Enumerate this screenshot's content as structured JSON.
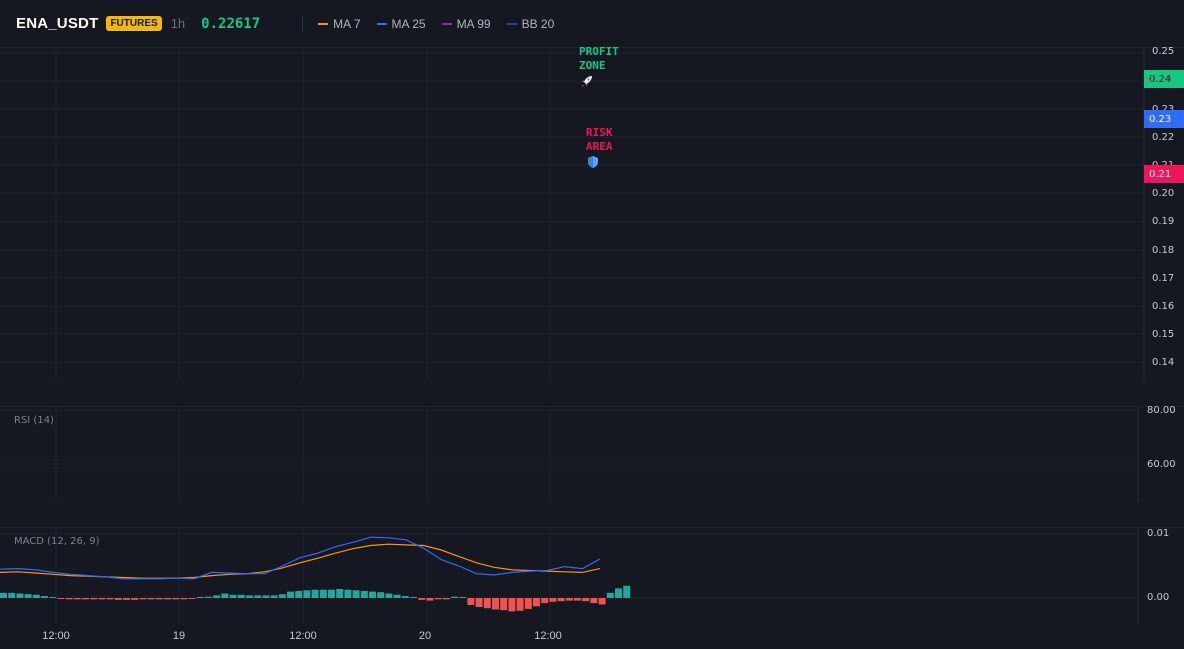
{
  "header": {
    "symbol": "ENA_USDT",
    "badge": "FUTURES",
    "interval": "1h",
    "price": "0.22617",
    "legend": [
      {
        "label": "MA 7",
        "color": "#f7931a"
      },
      {
        "label": "MA 25",
        "color": "#2f6bff"
      },
      {
        "label": "MA 99",
        "color": "#9c27b0"
      },
      {
        "label": "BB 20",
        "color": "#1e4a9c"
      }
    ]
  },
  "main_chart": {
    "price_axis": [
      "0.25",
      "0.24",
      "0.23",
      "0.23",
      "0.22",
      "0.21",
      "0.21",
      "0.20",
      "0.19",
      "0.18",
      "0.17",
      "0.16",
      "0.15",
      "0.14"
    ],
    "tags": [
      {
        "label": "0.24",
        "color": "#16c784"
      },
      {
        "label": "0.23",
        "color": "#2f6bff"
      },
      {
        "label": "0.21",
        "color": "#f0145a"
      }
    ],
    "annotations": {
      "profit": {
        "line1": "PROFIT",
        "line2": "ZONE",
        "color": "#16c784",
        "icon": "rocket-icon"
      },
      "risk": {
        "line1": "RISK",
        "line2": "AREA",
        "color": "#f0145a",
        "icon": "shield-icon"
      }
    }
  },
  "rsi": {
    "label": "RSI (14)",
    "axis": [
      "80.00",
      "60.00"
    ]
  },
  "macd": {
    "label": "MACD (12, 26, 9)",
    "axis": [
      "0.01",
      "0.00"
    ],
    "colors": {
      "macd": "#2f6bff",
      "signal": "#f7931a",
      "hist_pos": "#26a69a",
      "hist_neg": "#ef5350"
    },
    "histogram": [
      0.0008,
      0.0008,
      0.0007,
      0.0006,
      0.0005,
      0.0003,
      0.0001,
      -0.0001,
      -0.0002,
      -0.0002,
      -0.0002,
      -0.0002,
      -0.0002,
      -0.0002,
      -0.0003,
      -0.0003,
      -0.0003,
      -0.0002,
      -0.0002,
      -0.0002,
      -0.0002,
      -0.0002,
      -0.0002,
      -0.0001,
      0.0001,
      0.0002,
      0.0004,
      0.0007,
      0.0005,
      0.0005,
      0.0004,
      0.0004,
      0.0004,
      0.0004,
      0.0006,
      0.001,
      0.0011,
      0.0012,
      0.0013,
      0.0013,
      0.0013,
      0.0014,
      0.0013,
      0.0012,
      0.0011,
      0.001,
      0.0009,
      0.0007,
      0.0005,
      0.0003,
      0.0,
      -0.0003,
      -0.0004,
      -0.0002,
      -0.0002,
      0.0002,
      0.0,
      -0.0011,
      -0.0014,
      -0.0016,
      -0.0018,
      -0.0019,
      -0.0021,
      -0.002,
      -0.0017,
      -0.0013,
      -0.0008,
      -0.0006,
      -0.0005,
      -0.0004,
      -0.0004,
      -0.0005,
      -0.0008,
      -0.001,
      0.0008,
      0.0015,
      0.0019
    ],
    "macd_line": [
      0.0045,
      0.0046,
      0.0044,
      0.004,
      0.0037,
      0.0035,
      0.0033,
      0.003,
      0.003,
      0.003,
      0.0031,
      0.003,
      0.004,
      0.0039,
      0.0038,
      0.0038,
      0.005,
      0.0063,
      0.007,
      0.008,
      0.0087,
      0.0095,
      0.0094,
      0.0091,
      0.0078,
      0.006,
      0.005,
      0.0038,
      0.0036,
      0.004,
      0.0042,
      0.0043,
      0.0049,
      0.0046,
      0.0061
    ],
    "signal_line": [
      0.004,
      0.0041,
      0.0039,
      0.0037,
      0.0035,
      0.0034,
      0.0033,
      0.0032,
      0.0031,
      0.0031,
      0.0031,
      0.0032,
      0.0035,
      0.0037,
      0.0038,
      0.0041,
      0.0047,
      0.0055,
      0.0062,
      0.007,
      0.0077,
      0.0082,
      0.0084,
      0.0083,
      0.0082,
      0.0075,
      0.0065,
      0.0055,
      0.0048,
      0.0044,
      0.0043,
      0.0042,
      0.0041,
      0.004,
      0.0046
    ]
  },
  "time_axis": [
    "12:00",
    "19",
    "12:00",
    "20",
    "12:00"
  ]
}
